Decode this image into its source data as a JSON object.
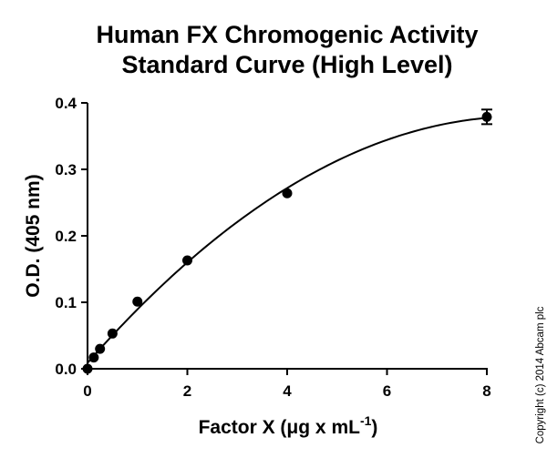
{
  "chart_data": {
    "type": "scatter",
    "title_lines": [
      "Human FX Chromogenic Activity",
      "Standard Curve (High Level)"
    ],
    "xlabel": "Factor X (μg x mL",
    "xlabel_superscript": "-1",
    "xlabel_suffix": ")",
    "ylabel": "O.D. (405 nm)",
    "xlim": [
      0,
      8
    ],
    "ylim": [
      0,
      0.4
    ],
    "x_ticks": [
      "0",
      "2",
      "4",
      "6",
      "8"
    ],
    "y_ticks": [
      "0.0",
      "0.1",
      "0.2",
      "0.3",
      "0.4"
    ],
    "x_tick_values": [
      0,
      2,
      4,
      6,
      8
    ],
    "y_tick_values": [
      0,
      0.1,
      0.2,
      0.3,
      0.4
    ],
    "points": [
      {
        "x": 0,
        "y": 0.0
      },
      {
        "x": 0.125,
        "y": 0.017
      },
      {
        "x": 0.25,
        "y": 0.03
      },
      {
        "x": 0.5,
        "y": 0.053
      },
      {
        "x": 1,
        "y": 0.101
      },
      {
        "x": 2,
        "y": 0.163
      },
      {
        "x": 4,
        "y": 0.264
      },
      {
        "x": 8,
        "y": 0.379,
        "err": 0.011
      }
    ],
    "fit": "quadratic",
    "grid": false,
    "marker_color": "#000000",
    "line_color": "#000000"
  },
  "copyright": "Copyright (c) 2014 Abcam plc"
}
